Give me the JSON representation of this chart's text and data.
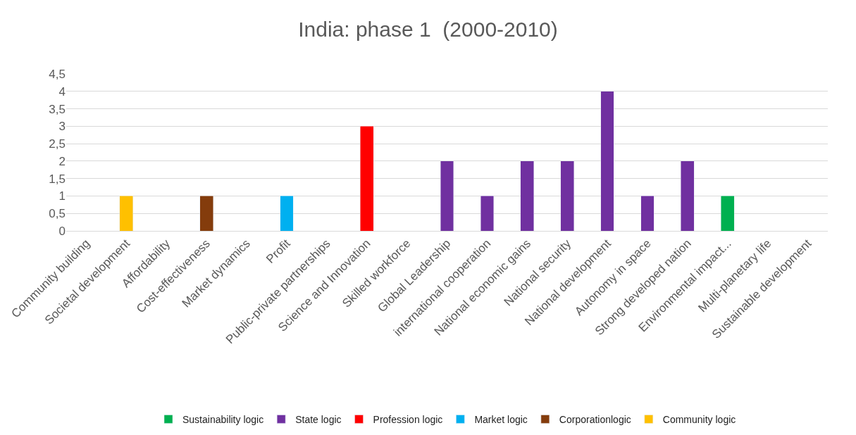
{
  "chart_data": {
    "type": "bar",
    "title": "India: phase 1  (2000-2010)",
    "stacked": true,
    "categories": [
      "Community building",
      "Societal development",
      "Affordability",
      "Cost-effectiveness",
      "Market dynamics",
      "Profit",
      "Public-private partnerships",
      "Science and Innovation",
      "Skilled workforce",
      "Global Leadership",
      "international cooperation",
      "National economic gains",
      "National security",
      "National development",
      "Autonomy in space",
      "Strong developed nation",
      "Environmental impact...",
      "Multi-planetary life",
      "Sustainable development"
    ],
    "series": [
      {
        "name": "Community logic",
        "color": "#ffc000",
        "values": [
          null,
          1,
          null,
          null,
          null,
          null,
          null,
          null,
          null,
          null,
          null,
          null,
          null,
          null,
          null,
          null,
          null,
          null,
          null
        ]
      },
      {
        "name": "Corporationlogic",
        "color": "#843c0c",
        "values": [
          null,
          null,
          null,
          1,
          null,
          null,
          null,
          null,
          null,
          null,
          null,
          null,
          null,
          null,
          null,
          null,
          null,
          null,
          null
        ]
      },
      {
        "name": "Market logic",
        "color": "#00b0f0",
        "values": [
          null,
          null,
          null,
          null,
          null,
          1,
          null,
          null,
          null,
          null,
          null,
          null,
          null,
          null,
          null,
          null,
          null,
          null,
          null
        ]
      },
      {
        "name": "Profession logic",
        "color": "#ff0000",
        "values": [
          null,
          null,
          null,
          null,
          null,
          null,
          null,
          3,
          null,
          null,
          null,
          null,
          null,
          null,
          null,
          null,
          null,
          null,
          null
        ]
      },
      {
        "name": "State logic",
        "color": "#7030a0",
        "values": [
          null,
          null,
          null,
          null,
          null,
          null,
          null,
          null,
          null,
          2,
          1,
          2,
          2,
          4,
          1,
          2,
          null,
          null,
          null
        ]
      },
      {
        "name": "Sustainability logic",
        "color": "#00b050",
        "values": [
          null,
          null,
          null,
          null,
          null,
          null,
          null,
          null,
          null,
          null,
          null,
          null,
          null,
          null,
          null,
          null,
          1,
          null,
          null
        ]
      }
    ],
    "ylim": [
      0,
      4.5
    ],
    "yticks": [
      0,
      {
        "value": 0.5,
        "label": "0,5"
      },
      1,
      {
        "value": 1.5,
        "label": "1,5"
      },
      2,
      {
        "value": 2.5,
        "label": "2,5"
      },
      3,
      {
        "value": 3.5,
        "label": "3,5"
      },
      4,
      {
        "value": 4.5,
        "label": "4,5"
      }
    ],
    "grid": "y",
    "legend": "bottom"
  }
}
